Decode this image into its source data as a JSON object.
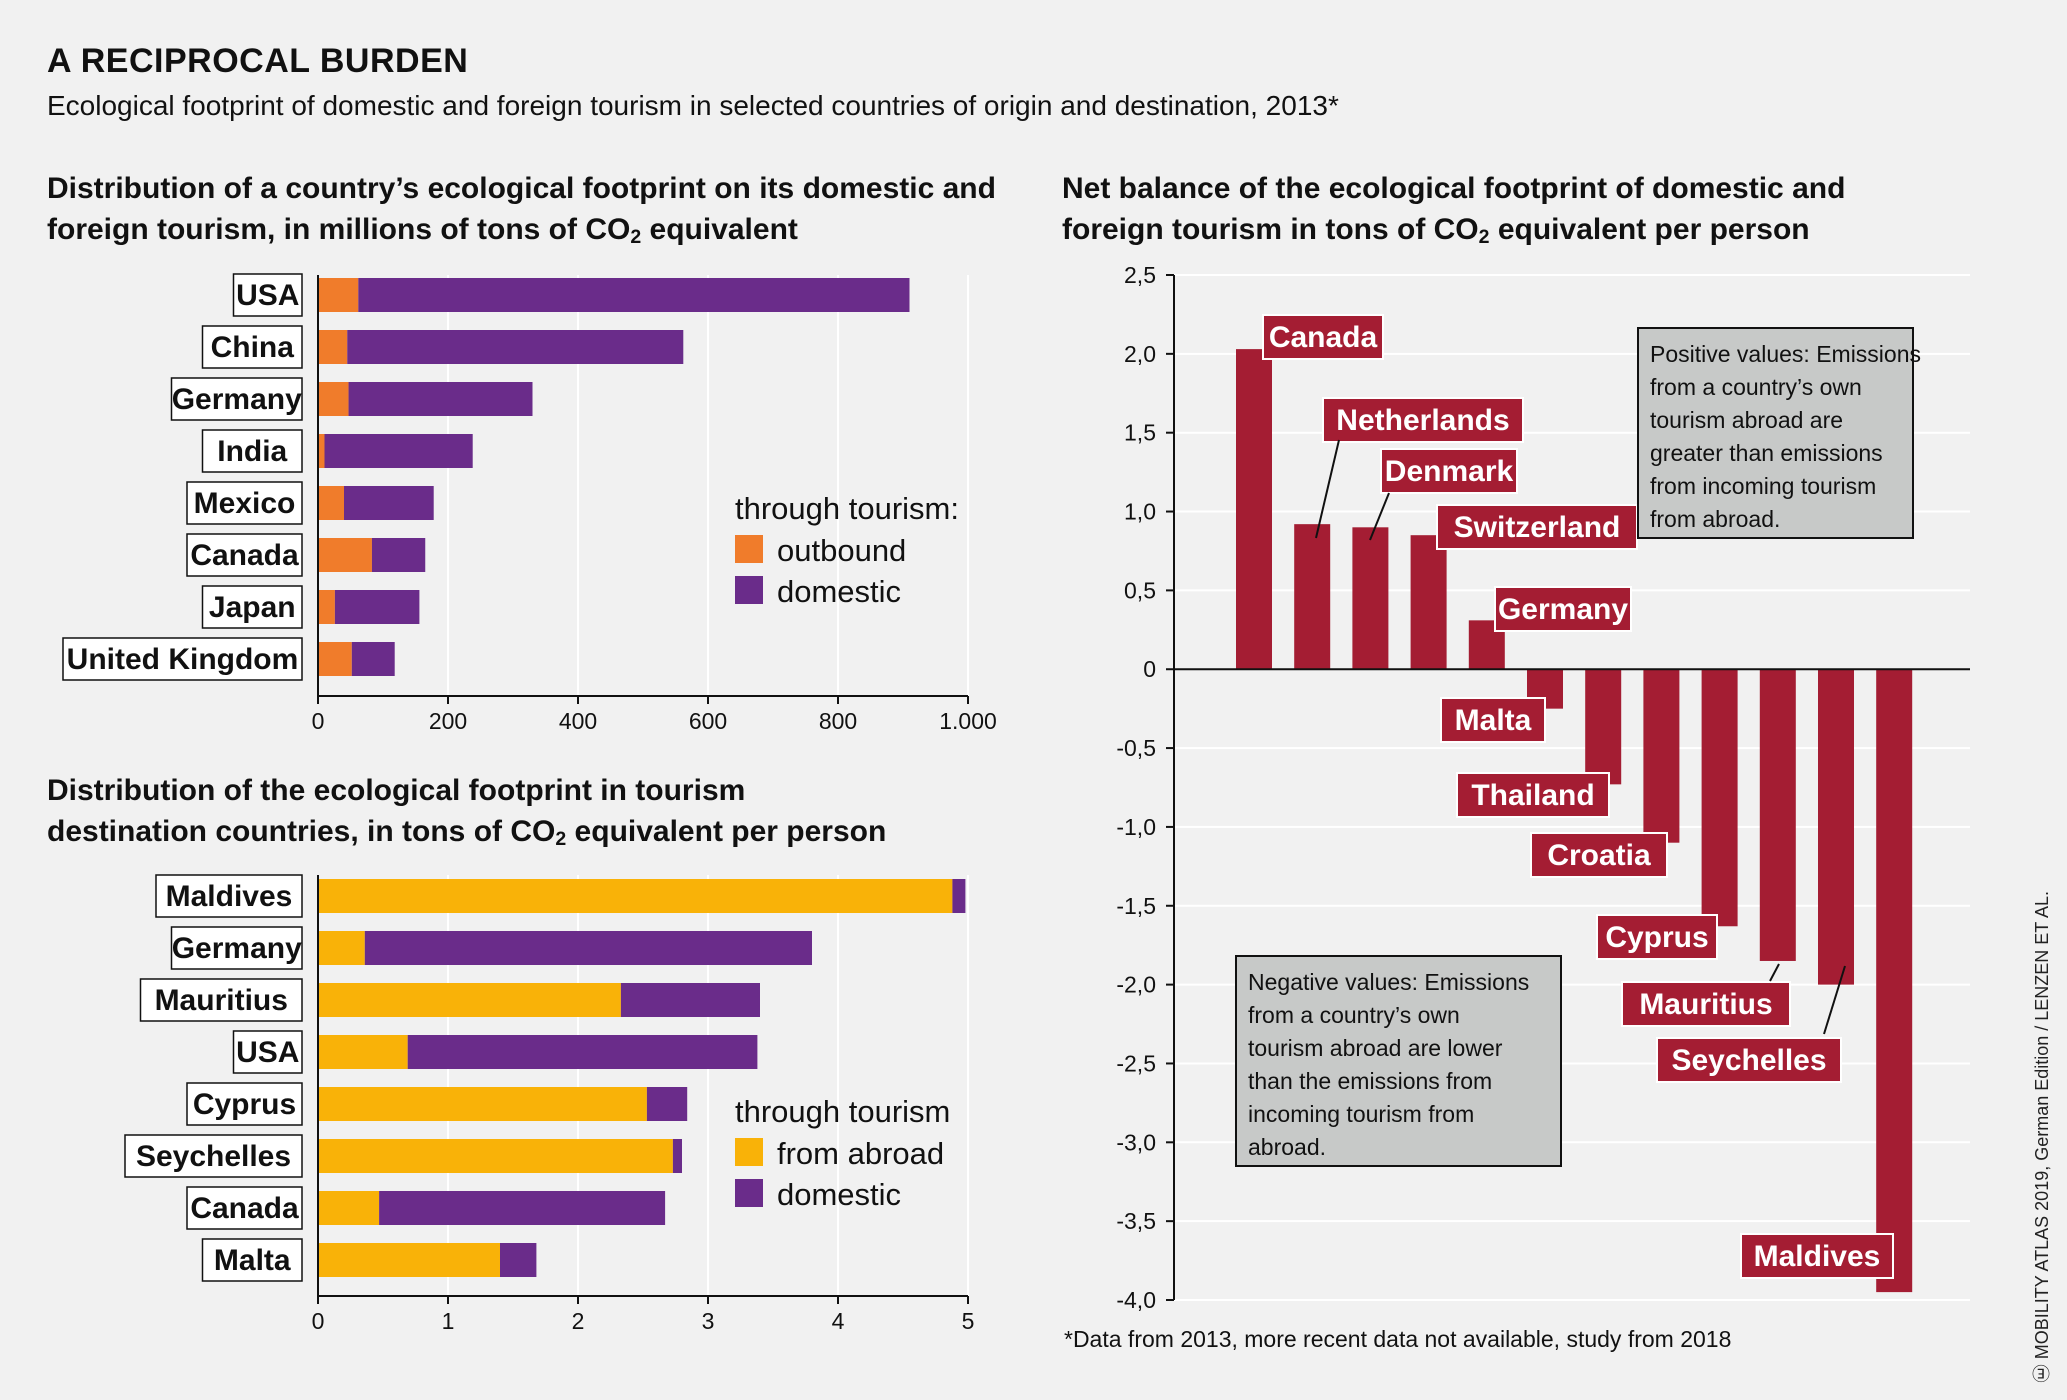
{
  "title": "A RECIPROCAL BURDEN",
  "subtitle": "Ecological footprint of domestic and foreign tourism in selected countries of origin and destination, 2013*",
  "footnote": "*Data from 2013, more recent data not available, study from 2018",
  "source": "Ⓔ MOBILITY ATLAS 2019, German Edition / LENZEN ET AL.",
  "colors": {
    "outbound": "#f07c2b",
    "domestic": "#6a2c8a",
    "from_abroad": "#f9b208",
    "net": "#a41d33",
    "label_bg": "#a41d33",
    "note_bg": "#c7c9c8"
  },
  "panels": {
    "p1": {
      "title_a": "Distribution of a country’s ecological footprint on its domestic and",
      "title_b_pre": "foreign tourism, in millions of tons of CO",
      "title_b_sub": "2",
      "title_b_post": " equivalent"
    },
    "p2": {
      "title_a": "Distribution of the ecological footprint in tourism",
      "title_b_pre": "destination countries, in tons of CO",
      "title_b_sub": "2",
      "title_b_post": " equivalent per person"
    },
    "p3": {
      "title_a": "Net balance of the ecological footprint of domestic and",
      "title_b_pre": "foreign tourism in tons of CO",
      "title_b_sub": "2",
      "title_b_post": " equivalent per person"
    }
  },
  "chart_data": [
    {
      "type": "bar",
      "orientation": "horizontal",
      "stacked": true,
      "categories": [
        "USA",
        "China",
        "Germany",
        "India",
        "Mexico",
        "Canada",
        "Japan",
        "United Kingdom"
      ],
      "legend_title": "through tourism:",
      "series": [
        {
          "name": "outbound",
          "values": [
            62,
            45,
            47,
            10,
            40,
            83,
            26,
            52
          ]
        },
        {
          "name": "domestic",
          "values": [
            848,
            517,
            283,
            228,
            138,
            82,
            130,
            66
          ]
        }
      ],
      "xlim": [
        0,
        1000
      ],
      "xticks": [
        "0",
        "200",
        "400",
        "600",
        "800",
        "1.000"
      ],
      "xtick_values": [
        0,
        200,
        400,
        600,
        800,
        1000
      ],
      "grid": true,
      "legend_position": "right"
    },
    {
      "type": "bar",
      "orientation": "horizontal",
      "stacked": true,
      "categories": [
        "Maldives",
        "Germany",
        "Mauritius",
        "USA",
        "Cyprus",
        "Seychelles",
        "Canada",
        "Malta"
      ],
      "legend_title": "through tourism",
      "series": [
        {
          "name": "from abroad",
          "values": [
            4.88,
            0.36,
            2.33,
            0.69,
            2.53,
            2.73,
            0.47,
            1.4
          ]
        },
        {
          "name": "domestic",
          "values": [
            0.1,
            3.44,
            1.07,
            2.69,
            0.31,
            0.07,
            2.2,
            0.28
          ]
        }
      ],
      "xlim": [
        0,
        5
      ],
      "xticks": [
        "0",
        "1",
        "2",
        "3",
        "4",
        "5"
      ],
      "xtick_values": [
        0,
        1,
        2,
        3,
        4,
        5
      ],
      "grid": true,
      "legend_position": "right"
    },
    {
      "type": "bar",
      "orientation": "vertical",
      "categories": [
        "Canada",
        "Netherlands",
        "Denmark",
        "Switzerland",
        "Germany",
        "Malta",
        "Thailand",
        "Croatia",
        "Cyprus",
        "Mauritius",
        "Seychelles",
        "Maldives"
      ],
      "values": [
        2.03,
        0.92,
        0.9,
        0.85,
        0.31,
        -0.25,
        -0.73,
        -1.1,
        -1.63,
        -1.85,
        -2.0,
        -3.95
      ],
      "ylim": [
        -4.0,
        2.5
      ],
      "yticks": [
        "2,5",
        "2,0",
        "1,5",
        "1,0",
        "0,5",
        "0",
        "-0,5",
        "-1,0",
        "-1,5",
        "-2,0",
        "-2,5",
        "-3,0",
        "-3,5",
        "-4,0"
      ],
      "ytick_values": [
        2.5,
        2.0,
        1.5,
        1.0,
        0.5,
        0,
        -0.5,
        -1.0,
        -1.5,
        -2.0,
        -2.5,
        -3.0,
        -3.5,
        -4.0
      ],
      "grid": true,
      "annotations": {
        "positive": [
          "Positive values: Emissions",
          "from a country’s own",
          "tourism abroad are",
          "greater than emissions",
          "from incoming tourism",
          "from abroad."
        ],
        "negative": [
          "Negative values: Emissions",
          "from a country’s own",
          "tourism abroad are lower",
          "than the emissions from",
          "incoming tourism from",
          "abroad."
        ]
      }
    }
  ]
}
